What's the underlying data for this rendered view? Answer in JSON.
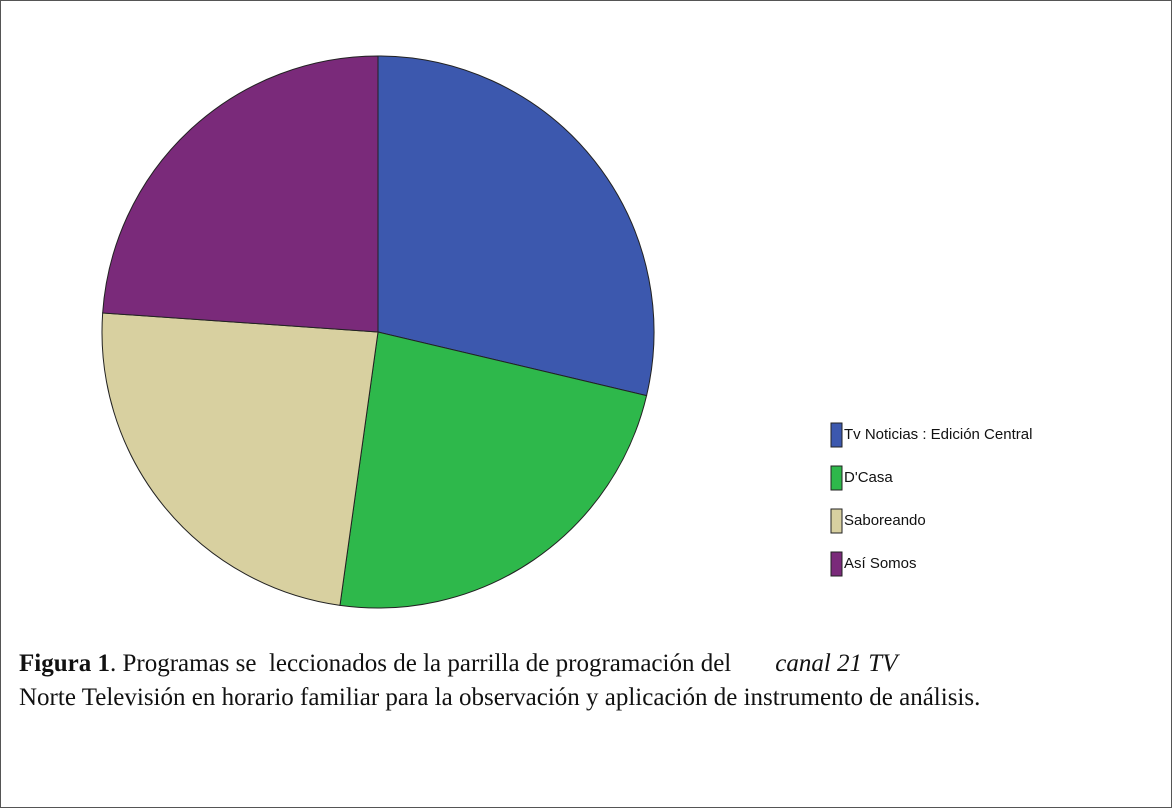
{
  "chart_data": {
    "type": "pie",
    "categories": [
      "Tv Noticias : Edición Central",
      "D'Casa",
      "Saboreando",
      "Así Somos"
    ],
    "values": [
      28.7,
      23.5,
      23.9,
      23.9
    ],
    "colors": [
      "#3c58ae",
      "#2eb84b",
      "#d8d0a0",
      "#7a2a7a"
    ]
  },
  "caption": {
    "label": "Figura 1",
    "text": ". Programas se  leccionados de la parrilla de programación del",
    "emphasis": "canal 21 TV",
    "rest": "Norte Televisión en horario familiar para la observación y aplicación de instrumento de análisis."
  }
}
